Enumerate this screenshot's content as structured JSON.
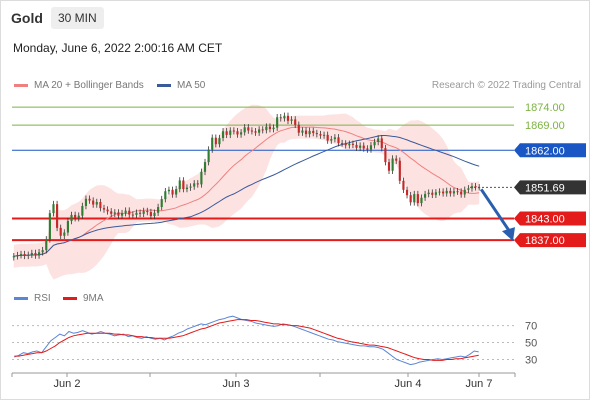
{
  "header": {
    "instrument": "Gold",
    "timeframe": "30 MIN",
    "datetime": "Monday, June 6, 2022 2:00:16 AM CET"
  },
  "legend": {
    "ma20_bb": "MA 20 + Bollinger Bands",
    "ma50": "MA 50",
    "credit": "Research © 2022 Trading Central",
    "rsi": "RSI",
    "ma9": "9MA"
  },
  "colors": {
    "up": "#2e7d32",
    "down": "#c62828",
    "candle_wick": "#333333",
    "bollinger_fill": "#fde2e2",
    "ma20": "#f08080",
    "ma50": "#3a5a9a",
    "resistance_green": "#7cb342",
    "pivot_blue": "#1a56c4",
    "support_red": "#e31b1b",
    "current_price_bg": "#333333",
    "arrow": "#2a5fb0",
    "rsi_line": "#5b86d6",
    "rsi_ma": "#e31b1b"
  },
  "chart_data": [
    {
      "type": "candlestick",
      "title": "",
      "xlabel": "",
      "ylabel": "",
      "ylim": [
        1827,
        1876
      ],
      "x_ticks": [
        "Jun 2",
        "Jun 3",
        "Jun 4",
        "Jun 7"
      ],
      "closes_approx": [
        1832.5,
        1832.8,
        1833.1,
        1832.6,
        1832.9,
        1833.4,
        1832.7,
        1833.6,
        1834.2,
        1837.2,
        1844.5,
        1847.0,
        1840.4,
        1838.2,
        1839.1,
        1842.3,
        1844.0,
        1843.1,
        1843.8,
        1846.5,
        1848.5,
        1848.0,
        1846.9,
        1847.6,
        1845.9,
        1845.5,
        1845.0,
        1844.3,
        1844.7,
        1843.8,
        1844.5,
        1845.2,
        1844.1,
        1844.0,
        1844.6,
        1844.3,
        1845.1,
        1844.8,
        1843.7,
        1844.6,
        1846.2,
        1848.4,
        1850.6,
        1851.0,
        1849.7,
        1851.2,
        1853.6,
        1851.2,
        1851.6,
        1851.9,
        1852.8,
        1852.5,
        1856.0,
        1858.7,
        1862.2,
        1865.5,
        1863.7,
        1865.4,
        1867.3,
        1866.3,
        1867.5,
        1867.3,
        1866.4,
        1867.0,
        1868.4,
        1867.5,
        1867.3,
        1866.9,
        1867.8,
        1867.6,
        1868.6,
        1867.9,
        1868.3,
        1871.2,
        1870.9,
        1871.6,
        1870.2,
        1870.6,
        1869.1,
        1866.9,
        1867.5,
        1866.5,
        1867.4,
        1866.8,
        1866.5,
        1866.1,
        1866.3,
        1864.7,
        1865.1,
        1865.6,
        1864.0,
        1863.9,
        1863.4,
        1863.8,
        1863.5,
        1862.7,
        1863.3,
        1862.5,
        1862.2,
        1863.4,
        1864.3,
        1865.3,
        1862.6,
        1858.7,
        1856.3,
        1859.7,
        1859.1,
        1853.5,
        1851.0,
        1849.5,
        1847.5,
        1849.8,
        1847.3,
        1848.8,
        1849.8,
        1850.2,
        1849.6,
        1850.3,
        1850.5,
        1850.0,
        1850.7,
        1850.0,
        1850.6,
        1850.5,
        1849.7,
        1851.0,
        1851.4,
        1852.0,
        1851.7,
        1851.7
      ],
      "levels": [
        {
          "label": "1874.00",
          "value": 1874.0,
          "type": "resistance"
        },
        {
          "label": "1869.00",
          "value": 1869.0,
          "type": "resistance"
        },
        {
          "label": "1862.00",
          "value": 1862.0,
          "type": "pivot"
        },
        {
          "label": "1851.69",
          "value": 1851.69,
          "type": "current"
        },
        {
          "label": "1843.00",
          "value": 1843.0,
          "type": "support"
        },
        {
          "label": "1837.00",
          "value": 1837.0,
          "type": "support"
        }
      ]
    },
    {
      "type": "line",
      "title": "",
      "xlabel": "",
      "ylabel": "",
      "ylim": [
        20,
        86
      ],
      "y_ticks": [
        70,
        50,
        30
      ],
      "series": [
        {
          "name": "RSI",
          "values": [
            33,
            35,
            38,
            37,
            39,
            40,
            38,
            45,
            52,
            56,
            60,
            58,
            63,
            61,
            62,
            64,
            62,
            60,
            61,
            63,
            61,
            60,
            58,
            59,
            60,
            57,
            58,
            56,
            55,
            57,
            55,
            54,
            55,
            53,
            56,
            58,
            61,
            63,
            66,
            68,
            70,
            72,
            71,
            73,
            75,
            77,
            78,
            80,
            81,
            79,
            77,
            76,
            75,
            73,
            72,
            71,
            70,
            69,
            70,
            72,
            71,
            70,
            68,
            66,
            64,
            62,
            60,
            58,
            56,
            54,
            53,
            51,
            50,
            49,
            48,
            47,
            46,
            46,
            45,
            45,
            44,
            42,
            38,
            34,
            30,
            28,
            26,
            24,
            25,
            27,
            28,
            29,
            30,
            31,
            30,
            31,
            32,
            33,
            34,
            33,
            36,
            40,
            39
          ]
        },
        {
          "name": "9MA",
          "values": [
            34,
            34,
            35,
            36,
            37,
            38,
            38,
            40,
            43,
            46,
            50,
            53,
            56,
            58,
            59,
            60,
            61,
            61,
            61,
            61,
            61,
            61,
            60,
            60,
            59,
            59,
            58,
            57,
            57,
            56,
            56,
            55,
            55,
            55,
            55,
            56,
            57,
            58,
            60,
            62,
            64,
            66,
            67,
            69,
            71,
            73,
            74,
            75,
            76,
            77,
            77,
            77,
            76,
            76,
            75,
            74,
            73,
            72,
            72,
            71,
            71,
            70,
            70,
            69,
            68,
            67,
            65,
            63,
            61,
            59,
            57,
            55,
            54,
            52,
            51,
            50,
            49,
            48,
            47,
            47,
            46,
            45,
            44,
            42,
            40,
            38,
            36,
            34,
            32,
            31,
            30,
            30,
            29,
            29,
            29,
            30,
            30,
            31,
            31,
            32,
            33,
            34,
            35
          ]
        }
      ]
    }
  ]
}
